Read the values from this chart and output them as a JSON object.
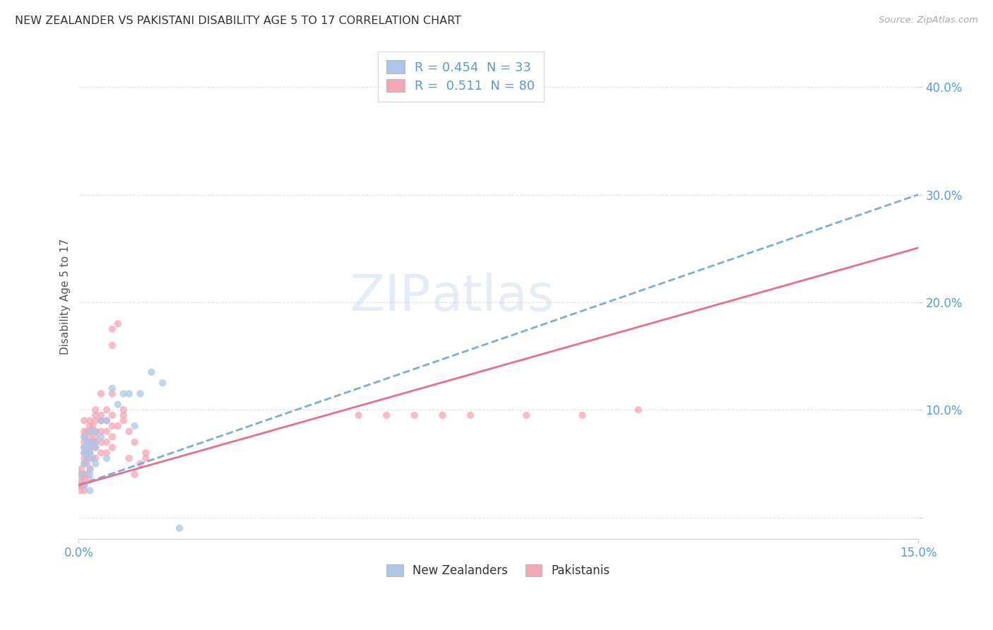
{
  "title": "NEW ZEALANDER VS PAKISTANI DISABILITY AGE 5 TO 17 CORRELATION CHART",
  "source": "Source: ZipAtlas.com",
  "ylabel": "Disability Age 5 to 17",
  "y_ticks": [
    0.0,
    0.1,
    0.2,
    0.3,
    0.4
  ],
  "y_tick_labels": [
    "",
    "10.0%",
    "20.0%",
    "30.0%",
    "40.0%"
  ],
  "x_range": [
    0.0,
    0.15
  ],
  "y_range": [
    -0.02,
    0.43
  ],
  "watermark_zip": "ZIP",
  "watermark_atlas": "atlas",
  "legend_nz": "R = 0.454  N = 33",
  "legend_pk": "R =  0.511  N = 80",
  "color_nz": "#adc6e8",
  "color_pk": "#f4a7b5",
  "color_nz_line": "#7bafd4",
  "color_pk_line": "#e8708a",
  "color_title": "#333333",
  "color_source": "#aaaaaa",
  "color_axis_label": "#5b9bd5",
  "color_tick_label": "#5b9bd5",
  "color_ylabel": "#555555",
  "color_grid": "#dddddd",
  "background_color": "#ffffff",
  "nz_x": [
    0.0005,
    0.001,
    0.001,
    0.001,
    0.001,
    0.001,
    0.0015,
    0.0015,
    0.002,
    0.002,
    0.002,
    0.002,
    0.002,
    0.002,
    0.002,
    0.0025,
    0.003,
    0.003,
    0.003,
    0.003,
    0.004,
    0.004,
    0.005,
    0.005,
    0.006,
    0.007,
    0.008,
    0.009,
    0.01,
    0.011,
    0.013,
    0.015,
    0.018
  ],
  "nz_y": [
    0.04,
    0.03,
    0.05,
    0.06,
    0.065,
    0.075,
    0.055,
    0.07,
    0.025,
    0.04,
    0.045,
    0.06,
    0.065,
    0.07,
    0.08,
    0.055,
    0.05,
    0.065,
    0.07,
    0.08,
    0.075,
    0.09,
    0.055,
    0.09,
    0.12,
    0.105,
    0.115,
    0.115,
    0.085,
    0.115,
    0.135,
    0.125,
    -0.01
  ],
  "pk_x": [
    0.0002,
    0.0003,
    0.0004,
    0.0005,
    0.0005,
    0.0005,
    0.001,
    0.001,
    0.001,
    0.001,
    0.001,
    0.001,
    0.001,
    0.001,
    0.001,
    0.001,
    0.001,
    0.001,
    0.0015,
    0.0015,
    0.0015,
    0.0015,
    0.002,
    0.002,
    0.002,
    0.002,
    0.002,
    0.002,
    0.002,
    0.002,
    0.002,
    0.002,
    0.0025,
    0.0025,
    0.003,
    0.003,
    0.003,
    0.003,
    0.003,
    0.003,
    0.003,
    0.003,
    0.004,
    0.004,
    0.004,
    0.004,
    0.004,
    0.004,
    0.005,
    0.005,
    0.005,
    0.005,
    0.005,
    0.006,
    0.006,
    0.006,
    0.006,
    0.006,
    0.006,
    0.006,
    0.007,
    0.007,
    0.008,
    0.008,
    0.008,
    0.009,
    0.009,
    0.01,
    0.01,
    0.011,
    0.012,
    0.012,
    0.05,
    0.055,
    0.06,
    0.065,
    0.07,
    0.08,
    0.09,
    0.1
  ],
  "pk_y": [
    0.03,
    0.025,
    0.03,
    0.035,
    0.04,
    0.045,
    0.025,
    0.03,
    0.035,
    0.04,
    0.05,
    0.055,
    0.06,
    0.065,
    0.07,
    0.075,
    0.08,
    0.09,
    0.04,
    0.05,
    0.06,
    0.08,
    0.035,
    0.045,
    0.055,
    0.06,
    0.065,
    0.07,
    0.075,
    0.08,
    0.085,
    0.09,
    0.07,
    0.085,
    0.055,
    0.065,
    0.07,
    0.075,
    0.08,
    0.09,
    0.095,
    0.1,
    0.06,
    0.07,
    0.08,
    0.09,
    0.095,
    0.115,
    0.06,
    0.07,
    0.08,
    0.09,
    0.1,
    0.065,
    0.075,
    0.085,
    0.095,
    0.115,
    0.16,
    0.175,
    0.085,
    0.18,
    0.09,
    0.095,
    0.1,
    0.055,
    0.08,
    0.07,
    0.04,
    0.05,
    0.055,
    0.06,
    0.095,
    0.095,
    0.095,
    0.095,
    0.095,
    0.095,
    0.095,
    0.1
  ]
}
